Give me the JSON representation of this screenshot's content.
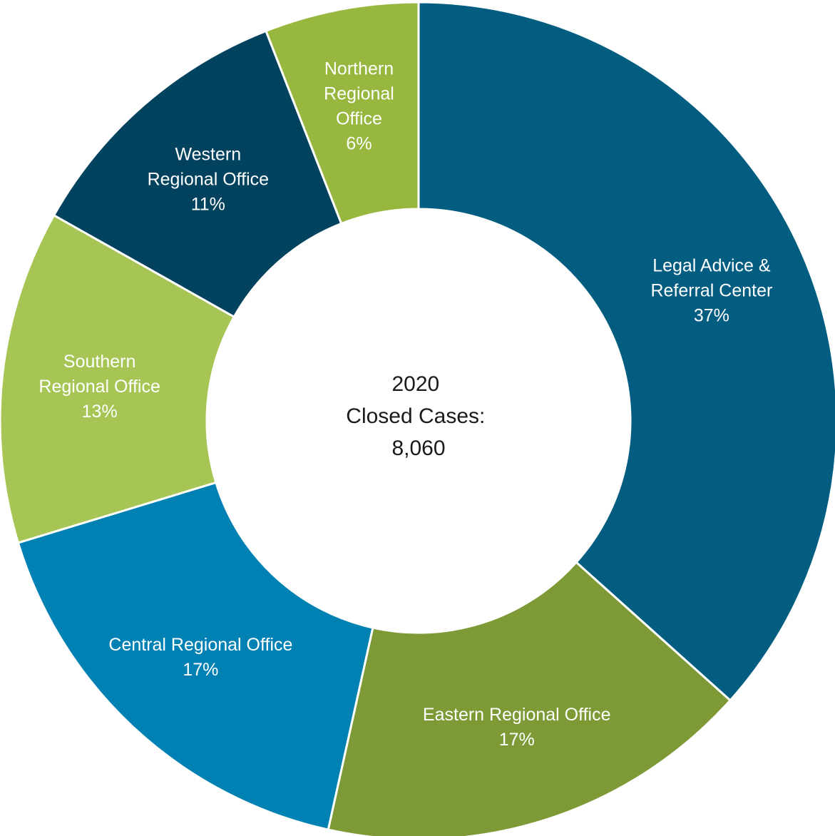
{
  "chart_data": {
    "type": "pie",
    "style": "donut",
    "center_text": [
      "2020",
      "Closed Cases:",
      "8,060"
    ],
    "slices": [
      {
        "name": "Legal Advice & Referral Center",
        "label_lines": [
          "Legal Advice &",
          "Referral Center"
        ],
        "value_label": "37%",
        "value": 37,
        "color": "#025D80"
      },
      {
        "name": "Eastern Regional Office",
        "label_lines": [
          "Eastern Regional Office"
        ],
        "value_label": "17%",
        "value": 17,
        "color": "#7D9A36"
      },
      {
        "name": "Central Regional Office",
        "label_lines": [
          "Central Regional Office"
        ],
        "value_label": "17%",
        "value": 17,
        "color": "#0081B3"
      },
      {
        "name": "Southern Regional Office",
        "label_lines": [
          "Southern",
          "Regional Office"
        ],
        "value_label": "13%",
        "value": 13,
        "color": "#A6C554"
      },
      {
        "name": "Western Regional Office",
        "label_lines": [
          "Western",
          "Regional Office"
        ],
        "value_label": "11%",
        "value": 11,
        "color": "#01435E"
      },
      {
        "name": "Northern Regional Office",
        "label_lines": [
          "Northern",
          "Regional",
          "Office"
        ],
        "value_label": "6%",
        "value": 6,
        "color": "#97B73E"
      }
    ]
  }
}
